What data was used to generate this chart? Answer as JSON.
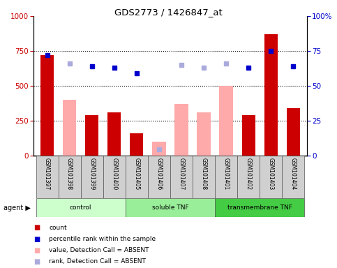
{
  "title": "GDS2773 / 1426847_at",
  "samples": [
    "GSM101397",
    "GSM101398",
    "GSM101399",
    "GSM101400",
    "GSM101405",
    "GSM101406",
    "GSM101407",
    "GSM101408",
    "GSM101401",
    "GSM101402",
    "GSM101403",
    "GSM101404"
  ],
  "groups": [
    {
      "label": "control",
      "start": 0,
      "end": 4,
      "color": "#ccffcc"
    },
    {
      "label": "soluble TNF",
      "start": 4,
      "end": 8,
      "color": "#99ee99"
    },
    {
      "label": "transmembrane TNF",
      "start": 8,
      "end": 12,
      "color": "#44cc44"
    }
  ],
  "count_values": [
    720,
    null,
    290,
    310,
    160,
    null,
    null,
    null,
    null,
    290,
    870,
    340
  ],
  "absent_value": [
    null,
    400,
    null,
    null,
    null,
    100,
    370,
    310,
    500,
    null,
    null,
    null
  ],
  "percentile_rank_present": [
    72,
    null,
    64,
    63,
    59,
    null,
    null,
    null,
    null,
    63,
    75,
    64
  ],
  "percentile_rank_absent": [
    null,
    66,
    null,
    null,
    null,
    null,
    65,
    63,
    66,
    null,
    null,
    null
  ],
  "rank_absent_on_left": [
    null,
    null,
    null,
    null,
    null,
    42,
    null,
    null,
    null,
    null,
    null,
    null
  ],
  "ylim": [
    0,
    1000
  ],
  "y2lim": [
    0,
    100
  ],
  "yticks": [
    0,
    250,
    500,
    750,
    1000
  ],
  "y2ticks": [
    0,
    25,
    50,
    75,
    100
  ],
  "bar_width": 0.6,
  "count_color": "#cc0000",
  "absent_value_color": "#ffaaaa",
  "rank_present_color": "#0000cc",
  "rank_absent_color": "#aaaadd",
  "left_label_color": "#cc0000",
  "right_label_color": "#0000cc"
}
